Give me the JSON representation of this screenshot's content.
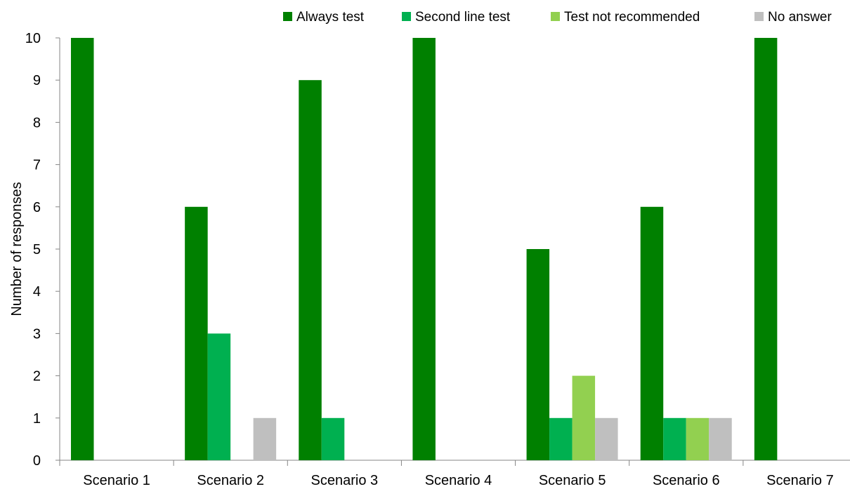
{
  "chart_data": {
    "type": "bar",
    "title": "",
    "xlabel": "",
    "ylabel": "Number of responses",
    "ylim": [
      0,
      10
    ],
    "yticks": [
      "0",
      "1",
      "2",
      "3",
      "4",
      "5",
      "6",
      "7",
      "8",
      "9",
      "10"
    ],
    "categories": [
      "Scenario 1",
      "Scenario 2",
      "Scenario 3",
      "Scenario 4",
      "Scenario 5",
      "Scenario 6",
      "Scenario 7"
    ],
    "series": [
      {
        "name": "Always test",
        "color": "#008000",
        "values": [
          10,
          6,
          9,
          10,
          5,
          6,
          10
        ]
      },
      {
        "name": "Second line test",
        "color": "#00B050",
        "values": [
          0,
          3,
          1,
          0,
          1,
          1,
          0
        ]
      },
      {
        "name": "Test not recommended",
        "color": "#92D050",
        "values": [
          0,
          0,
          0,
          0,
          2,
          1,
          0
        ]
      },
      {
        "name": "No answer",
        "color": "#BFBFBF",
        "values": [
          0,
          1,
          0,
          0,
          1,
          1,
          0
        ]
      }
    ],
    "legend_position": "top-right",
    "grid": false
  }
}
